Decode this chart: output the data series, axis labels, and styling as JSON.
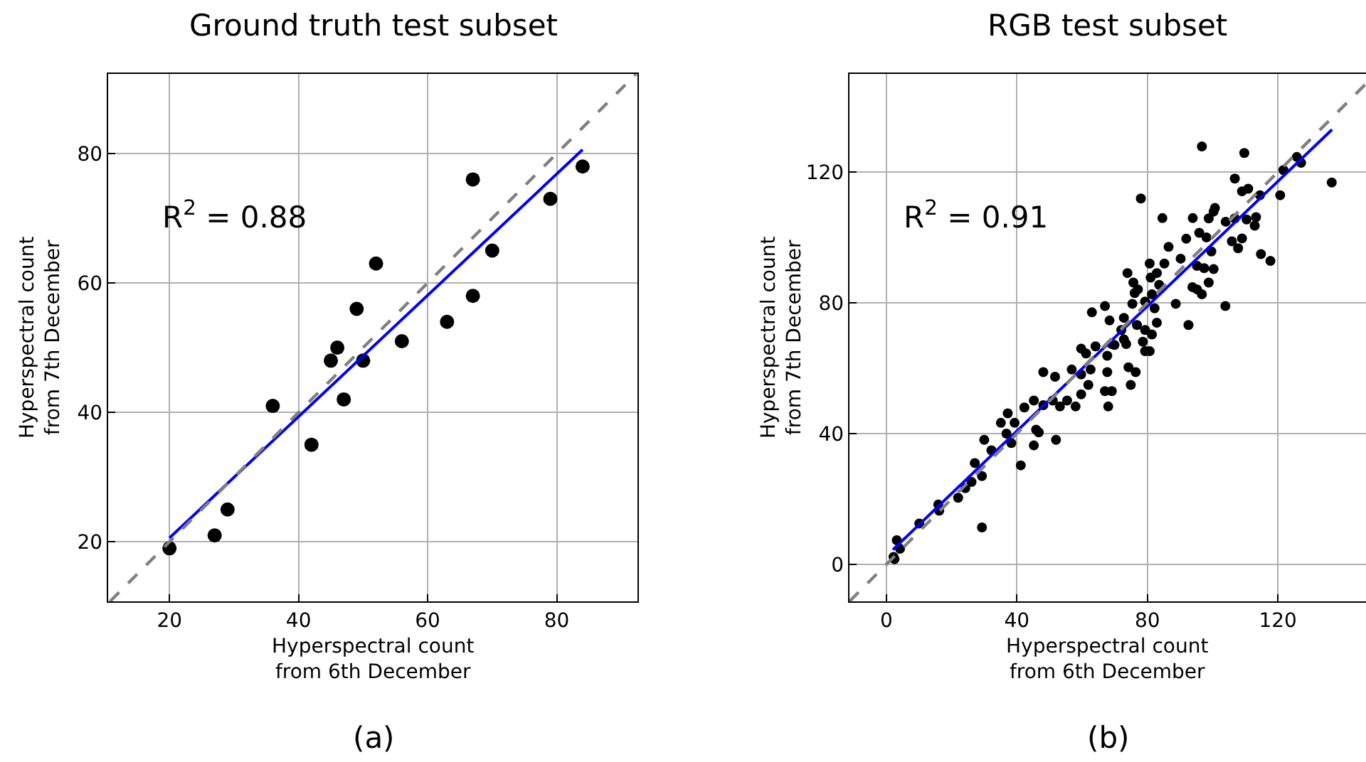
{
  "chart_data": [
    {
      "type": "scatter",
      "title": "Ground truth test subset",
      "xlabel": "Hyperspectral count\nfrom 6th December",
      "ylabel": "Hyperspectral count\nfrom 7th December",
      "annotations": [
        "R$^{2}$ = 0.88",
        "(a)"
      ],
      "xlim": [
        10.5,
        92.5
      ],
      "ylim": [
        10.8,
        92.3
      ],
      "xticks": [
        20,
        40,
        60,
        80
      ],
      "yticks": [
        20,
        40,
        60,
        80
      ],
      "grid": true,
      "marker": "circle",
      "series": [
        {
          "color": "#000000",
          "x": [
            20,
            27,
            29,
            36,
            42,
            45,
            46,
            47,
            49,
            50,
            52,
            56,
            63,
            67,
            67,
            70,
            79,
            84
          ],
          "values": [
            19,
            21,
            25,
            41,
            35,
            48,
            50,
            42,
            56,
            48,
            63,
            51,
            54,
            76,
            58,
            65,
            73,
            78
          ]
        },
        {
          "type": "line",
          "color": "#0000ff",
          "line_style": "solid",
          "marker": "none",
          "x": [
            20,
            84
          ],
          "values": [
            20.6,
            80.6
          ]
        },
        {
          "type": "line",
          "color": "#808080",
          "line_style": "dashed",
          "marker": "none",
          "x": [
            10.8,
            92.3
          ],
          "values": [
            10.8,
            92.3
          ]
        }
      ]
    },
    {
      "type": "scatter",
      "title": "RGB test subset",
      "xlabel": "Hyperspectral count\nfrom 6th December",
      "ylabel": "Hyperspectral count\nfrom 7th December",
      "annotations": [
        "R$^{2}$ = 0.91",
        "(b)"
      ],
      "xlim": [
        -11.3,
        147
      ],
      "ylim": [
        -11.3,
        150
      ],
      "xticks": [
        0,
        40,
        80,
        120
      ],
      "yticks": [
        0,
        40,
        80,
        120
      ],
      "grid": true,
      "marker": "circle",
      "series": [
        {
          "color": "#000000",
          "x": [
            96.7,
            109.7,
            125.8,
            127.1,
            121.7,
            136.5,
            106.8,
            109,
            110.9,
            114.5,
            120.7,
            78,
            84.6,
            93.9,
            98.8,
            100.3,
            100.7,
            104,
            106.8,
            110.4,
            113.3,
            112.9,
            105.9,
            109,
            107.8,
            114.8,
            117.7,
            103.9,
            92.6,
            91.9,
            95.9,
            98.1,
            99.6,
            95.2,
            97.4,
            100.3,
            98.8,
            95.2,
            96.7,
            93.8,
            88.7,
            90.2,
            86.5,
            85.2,
            82.9,
            80.7,
            81,
            83.6,
            81.4,
            82.2,
            79.3,
            75.7,
            77.1,
            73.9,
            75.4,
            76.1,
            67,
            63,
            68.4,
            72.8,
            72,
            76.8,
            79.3,
            82.9,
            81.4,
            69.1,
            73.5,
            79.3,
            80.7,
            59.7,
            61.2,
            64.1,
            67.7,
            72.8,
            78.6,
            69.9,
            48.1,
            51.7,
            56.8,
            59.7,
            62.6,
            67.7,
            74.2,
            76.4,
            61.9,
            67,
            69.1,
            74.9,
            59.7,
            55.4,
            51,
            45.2,
            48.1,
            42.3,
            53.2,
            58,
            68,
            37.2,
            35.1,
            39.3,
            36.8,
            38.3,
            45.9,
            46.7,
            45.2,
            52,
            30,
            32.2,
            41.2,
            27.1,
            29.3,
            26.1,
            22,
            24.2,
            15.9,
            16.2,
            10.1,
            29.3,
            3.2,
            4.2,
            2.2,
            2.5
          ],
          "values": [
            127.8,
            125.8,
            124.6,
            122.8,
            120.6,
            116.8,
            118,
            114.1,
            114.9,
            112.9,
            112.9,
            111.9,
            105.9,
            105.9,
            105.8,
            107.9,
            109,
            104.8,
            105.8,
            105.5,
            106.2,
            103.6,
            98.8,
            99.7,
            96.7,
            94.9,
            92.8,
            79,
            73.2,
            99.6,
            101.4,
            100,
            95.7,
            91.3,
            90.6,
            90.3,
            86.2,
            84.1,
            82.6,
            84.8,
            79.7,
            93.5,
            97.1,
            92,
            89.1,
            92,
            87.7,
            85.5,
            82.6,
            78.3,
            80.4,
            86.2,
            84.1,
            89.1,
            79.7,
            83,
            79,
            77.1,
            74.6,
            75.4,
            71.7,
            73.2,
            71.7,
            73.9,
            70.3,
            67.4,
            67.4,
            65.2,
            65.2,
            66,
            64.5,
            66.7,
            63.8,
            68.8,
            68.1,
            67.1,
            58.8,
            57.4,
            59.6,
            58.1,
            59.6,
            58.8,
            60.3,
            58.8,
            54.9,
            53,
            53,
            54.9,
            52,
            50.1,
            50.1,
            50.1,
            48.7,
            48,
            48.3,
            48.3,
            48.3,
            46.2,
            43.3,
            43.3,
            40,
            37.1,
            41.2,
            40.4,
            36.4,
            38.1,
            38.1,
            34.9,
            30.3,
            31,
            27,
            25.2,
            20.4,
            23.3,
            18.3,
            16.4,
            12.5,
            11.3,
            7.4,
            4.8,
            2.3,
            1.6
          ]
        },
        {
          "type": "line",
          "color": "#0000ff",
          "line_style": "solid",
          "marker": "none",
          "x": [
            2,
            136.6
          ],
          "values": [
            4.5,
            133
          ]
        },
        {
          "type": "line",
          "color": "#808080",
          "line_style": "dashed",
          "marker": "none",
          "x": [
            -11.3,
            147
          ],
          "values": [
            -11.3,
            147
          ]
        }
      ]
    }
  ]
}
